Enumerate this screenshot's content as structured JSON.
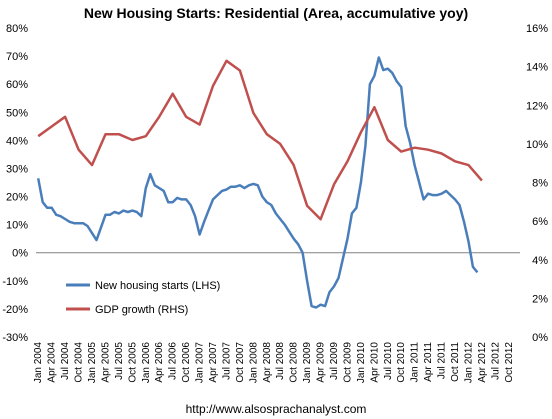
{
  "chart_data": {
    "type": "line",
    "title": "New Housing Starts: Residential (Area, accumulative yoy)",
    "footer": "http://www.alsosprachanalyst.com",
    "left_axis": {
      "ylim": [
        -30,
        80
      ],
      "ticks": [
        "-30%",
        "-20%",
        "-10%",
        "0%",
        "10%",
        "20%",
        "30%",
        "40%",
        "50%",
        "60%",
        "70%",
        "80%"
      ],
      "tick_values": [
        -30,
        -20,
        -10,
        0,
        10,
        20,
        30,
        40,
        50,
        60,
        70,
        80
      ]
    },
    "right_axis": {
      "ylim": [
        0,
        16
      ],
      "ticks": [
        "0%",
        "2%",
        "4%",
        "6%",
        "8%",
        "10%",
        "12%",
        "14%",
        "16%"
      ],
      "tick_values": [
        0,
        2,
        4,
        6,
        8,
        10,
        12,
        14,
        16
      ]
    },
    "x_ticks": [
      "Jan 2004",
      "Apr 2004",
      "Jul 2004",
      "Oct 2004",
      "Jan 2005",
      "Apr 2005",
      "Jul 2005",
      "Oct 2005",
      "Jan 2006",
      "Apr 2006",
      "Jul 2006",
      "Oct 2006",
      "Jan 2007",
      "Apr 2007",
      "Jul 2007",
      "Oct 2007",
      "Jan 2008",
      "Apr 2008",
      "Jul 2008",
      "Oct 2008",
      "Jan 2009",
      "Apr 2009",
      "Jul 2009",
      "Oct 2009",
      "Jan 2010",
      "Apr 2010",
      "Jul 2010",
      "Oct 2010",
      "Jan 2011",
      "Apr 2011",
      "Jul 2011",
      "Oct 2011",
      "Jan 2012",
      "Apr 2012",
      "Jul 2012",
      "Oct 2012"
    ],
    "legend": {
      "placement": "lower-left"
    },
    "grid": false,
    "series": [
      {
        "name": "New housing starts (LHS)",
        "axis": "left",
        "color": "#4a7ebb",
        "points": [
          [
            0,
            26.5
          ],
          [
            1,
            18
          ],
          [
            2,
            16
          ],
          [
            3,
            16
          ],
          [
            4,
            13.5
          ],
          [
            5,
            13
          ],
          [
            6,
            12
          ],
          [
            7,
            11
          ],
          [
            8,
            10.5
          ],
          [
            9,
            10.5
          ],
          [
            10,
            10.5
          ],
          [
            11,
            9.5
          ],
          [
            12,
            7
          ],
          [
            13,
            4.5
          ],
          [
            14,
            9
          ],
          [
            15,
            13.5
          ],
          [
            16,
            13.5
          ],
          [
            17,
            14.5
          ],
          [
            18,
            14
          ],
          [
            19,
            15
          ],
          [
            20,
            14.5
          ],
          [
            21,
            15
          ],
          [
            22,
            14.5
          ],
          [
            23,
            13
          ],
          [
            24,
            23
          ],
          [
            25,
            28
          ],
          [
            26,
            24
          ],
          [
            27,
            23
          ],
          [
            28,
            22
          ],
          [
            29,
            18
          ],
          [
            30,
            18
          ],
          [
            31,
            19.5
          ],
          [
            32,
            19
          ],
          [
            33,
            19
          ],
          [
            34,
            17
          ],
          [
            35,
            13
          ],
          [
            36,
            6.5
          ],
          [
            37,
            11
          ],
          [
            38,
            15
          ],
          [
            39,
            19
          ],
          [
            40,
            20.5
          ],
          [
            41,
            22
          ],
          [
            42,
            22.5
          ],
          [
            43,
            23.5
          ],
          [
            44,
            23.5
          ],
          [
            45,
            24
          ],
          [
            46,
            23
          ],
          [
            47,
            24
          ],
          [
            48,
            24.5
          ],
          [
            49,
            24
          ],
          [
            50,
            20
          ],
          [
            51,
            18
          ],
          [
            52,
            17
          ],
          [
            53,
            14
          ],
          [
            54,
            12
          ],
          [
            55,
            10
          ],
          [
            56,
            7.5
          ],
          [
            57,
            5
          ],
          [
            58,
            3
          ],
          [
            59,
            0
          ],
          [
            60,
            -10
          ],
          [
            61,
            -19
          ],
          [
            62,
            -19.5
          ],
          [
            63,
            -18.5
          ],
          [
            64,
            -19
          ],
          [
            65,
            -14
          ],
          [
            66,
            -12
          ],
          [
            67,
            -9
          ],
          [
            68,
            -2
          ],
          [
            69,
            5
          ],
          [
            70,
            14
          ],
          [
            71,
            16
          ],
          [
            72,
            25
          ],
          [
            73,
            38
          ],
          [
            74,
            60
          ],
          [
            75,
            63
          ],
          [
            76,
            69.5
          ],
          [
            77,
            65
          ],
          [
            78,
            65.5
          ],
          [
            79,
            64
          ],
          [
            80,
            61
          ],
          [
            81,
            59
          ],
          [
            82,
            45
          ],
          [
            83,
            39
          ],
          [
            84,
            31
          ],
          [
            85,
            25
          ],
          [
            86,
            19
          ],
          [
            87,
            21
          ],
          [
            88,
            20.5
          ],
          [
            89,
            20.5
          ],
          [
            90,
            21
          ],
          [
            91,
            22
          ],
          [
            92,
            20.5
          ],
          [
            93,
            19
          ],
          [
            94,
            17
          ],
          [
            95,
            11
          ],
          [
            96,
            4
          ],
          [
            97,
            -5
          ],
          [
            98,
            -7
          ]
        ]
      },
      {
        "name": "GDP growth (RHS)",
        "axis": "right",
        "color": "#c0504d",
        "points": [
          [
            0,
            10.4
          ],
          [
            6,
            11.4
          ],
          [
            9,
            9.7
          ],
          [
            12,
            8.9
          ],
          [
            15,
            10.5
          ],
          [
            18,
            10.5
          ],
          [
            21,
            10.2
          ],
          [
            24,
            10.4
          ],
          [
            27,
            11.4
          ],
          [
            30,
            12.6
          ],
          [
            33,
            11.4
          ],
          [
            36,
            11
          ],
          [
            39,
            13
          ],
          [
            42,
            14.3
          ],
          [
            45,
            13.8
          ],
          [
            48,
            11.6
          ],
          [
            51,
            10.5
          ],
          [
            54,
            10
          ],
          [
            57,
            8.9
          ],
          [
            60,
            6.8
          ],
          [
            63,
            6.1
          ],
          [
            66,
            7.9
          ],
          [
            69,
            9.1
          ],
          [
            72,
            10.6
          ],
          [
            75,
            11.9
          ],
          [
            78,
            10.2
          ],
          [
            81,
            9.6
          ],
          [
            84,
            9.8
          ],
          [
            87,
            9.7
          ],
          [
            90,
            9.5
          ],
          [
            93,
            9.1
          ],
          [
            96,
            8.9
          ],
          [
            99,
            8.1
          ]
        ]
      }
    ]
  }
}
